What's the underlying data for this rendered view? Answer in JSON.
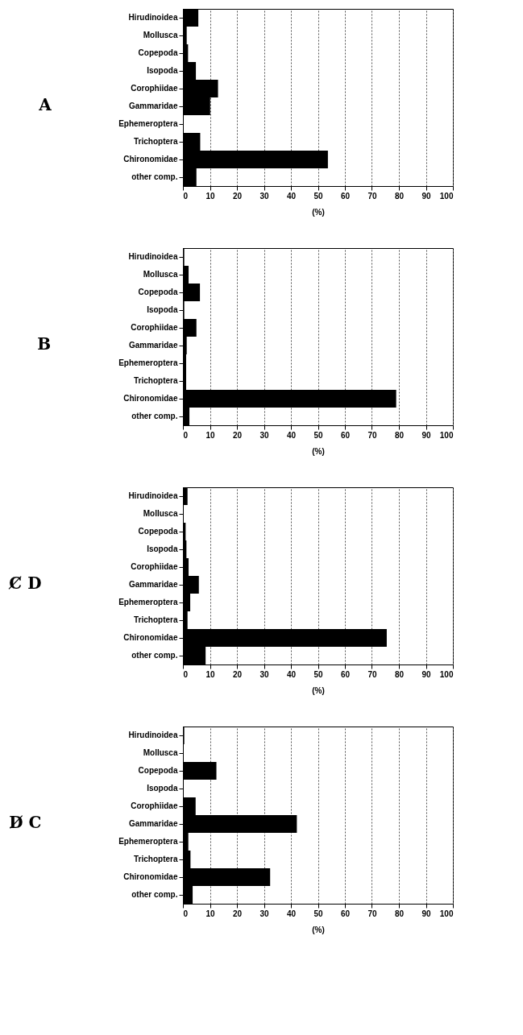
{
  "chart_data": [
    {
      "type": "bar",
      "orientation": "horizontal",
      "title": "A",
      "xlabel": "(%)",
      "categories": [
        "Hirudinoidea",
        "Mollusca",
        "Copepoda",
        "Isopoda",
        "Corophiidae",
        "Gammaridae",
        "Ephemeroptera",
        "Trichoptera",
        "Chironomidae",
        "other comp."
      ],
      "values": [
        5.7,
        1.4,
        1.9,
        4.8,
        13,
        10.1,
        0.3,
        6.4,
        53.7,
        5.0
      ],
      "color": "#000000",
      "xlim": [
        0,
        100
      ],
      "xticks": [
        0,
        10,
        20,
        30,
        40,
        50,
        60,
        70,
        80,
        90,
        100
      ],
      "grid": "x"
    },
    {
      "type": "bar",
      "orientation": "horizontal",
      "title": "B",
      "xlabel": "(%)",
      "categories": [
        "Hirudinoidea",
        "Mollusca",
        "Copepoda",
        "Isopoda",
        "Corophiidae",
        "Gammaridae",
        "Ephemeroptera",
        "Trichoptera",
        "Chironomidae",
        "other comp."
      ],
      "values": [
        0.5,
        2.1,
        6.3,
        0.5,
        5.0,
        1.4,
        1.2,
        1.2,
        79,
        2.4
      ],
      "color": "#000000",
      "xlim": [
        0,
        100
      ],
      "xticks": [
        0,
        10,
        20,
        30,
        40,
        50,
        60,
        70,
        80,
        90,
        100
      ],
      "grid": "x"
    },
    {
      "type": "bar",
      "orientation": "horizontal",
      "title": "C̸ D",
      "xlabel": "(%)",
      "categories": [
        "Hirudinoidea",
        "Mollusca",
        "Copepoda",
        "Isopoda",
        "Corophiidae",
        "Gammaridae",
        "Ephemeroptera",
        "Trichoptera",
        "Chironomidae",
        "other comp."
      ],
      "values": [
        1.7,
        0.3,
        1.0,
        1.3,
        2.1,
        5.9,
        2.7,
        1.7,
        75.5,
        8.4
      ],
      "color": "#000000",
      "xlim": [
        0,
        100
      ],
      "xticks": [
        0,
        10,
        20,
        30,
        40,
        50,
        60,
        70,
        80,
        90,
        100
      ],
      "grid": "x"
    },
    {
      "type": "bar",
      "orientation": "horizontal",
      "title": "D̸ C",
      "xlabel": "(%)",
      "categories": [
        "Hirudinoidea",
        "Mollusca",
        "Copepoda",
        "Isopoda",
        "Corophiidae",
        "Gammaridae",
        "Ephemeroptera",
        "Trichoptera",
        "Chironomidae",
        "other comp."
      ],
      "values": [
        0.5,
        0,
        12.4,
        0.3,
        4.7,
        42.2,
        2.0,
        2.8,
        32.3,
        3.6
      ],
      "color": "#000000",
      "xlim": [
        0,
        100
      ],
      "xticks": [
        0,
        10,
        20,
        30,
        40,
        50,
        60,
        70,
        80,
        90,
        100
      ],
      "grid": "x"
    }
  ]
}
